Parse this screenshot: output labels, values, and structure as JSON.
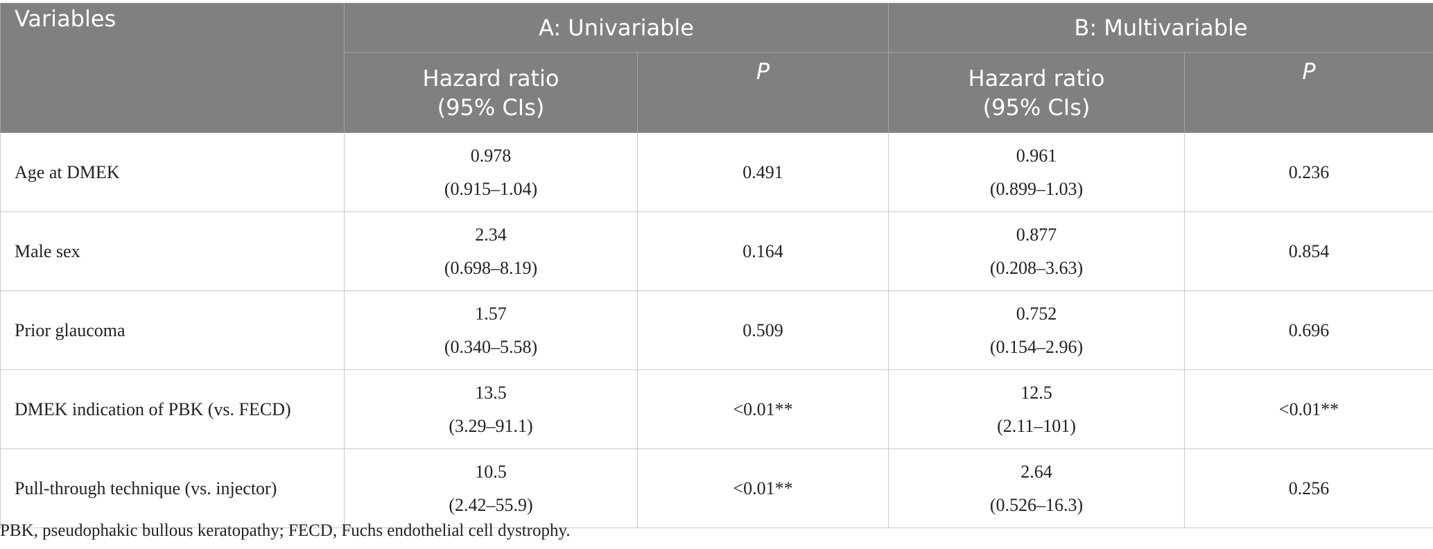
{
  "header": {
    "variables": "Variables",
    "groups": [
      {
        "title": "A: Univariable",
        "hr": [
          "Hazard ratio",
          "(95% CIs)"
        ],
        "p": "P"
      },
      {
        "title": "B: Multivariable",
        "hr": [
          "Hazard ratio",
          "(95% CIs)"
        ],
        "p": "P"
      }
    ]
  },
  "rows": [
    {
      "variable": "Age at DMEK",
      "groups": [
        {
          "hr": "0.978",
          "ci": "(0.915–1.04)",
          "p": "0.491"
        },
        {
          "hr": "0.961",
          "ci": "(0.899–1.03)",
          "p": "0.236"
        }
      ]
    },
    {
      "variable": "Male sex",
      "groups": [
        {
          "hr": "2.34",
          "ci": "(0.698–8.19)",
          "p": "0.164"
        },
        {
          "hr": "0.877",
          "ci": "(0.208–3.63)",
          "p": "0.854"
        }
      ]
    },
    {
      "variable": "Prior glaucoma",
      "groups": [
        {
          "hr": "1.57",
          "ci": "(0.340–5.58)",
          "p": "0.509"
        },
        {
          "hr": "0.752",
          "ci": "(0.154–2.96)",
          "p": "0.696"
        }
      ]
    },
    {
      "variable": "DMEK indication of PBK (vs. FECD)",
      "groups": [
        {
          "hr": "13.5",
          "ci": "(3.29–91.1)",
          "p": "<0.01**"
        },
        {
          "hr": "12.5",
          "ci": "(2.11–101)",
          "p": "<0.01**"
        }
      ]
    },
    {
      "variable": "Pull-through technique (vs. injector)",
      "groups": [
        {
          "hr": "10.5",
          "ci": "(2.42–55.9)",
          "p": "<0.01**"
        },
        {
          "hr": "2.64",
          "ci": "(0.526–16.3)",
          "p": "0.256"
        }
      ]
    }
  ],
  "footnote": "PBK, pseudophakic bullous keratopathy; FECD, Fuchs endothelial cell dystrophy."
}
